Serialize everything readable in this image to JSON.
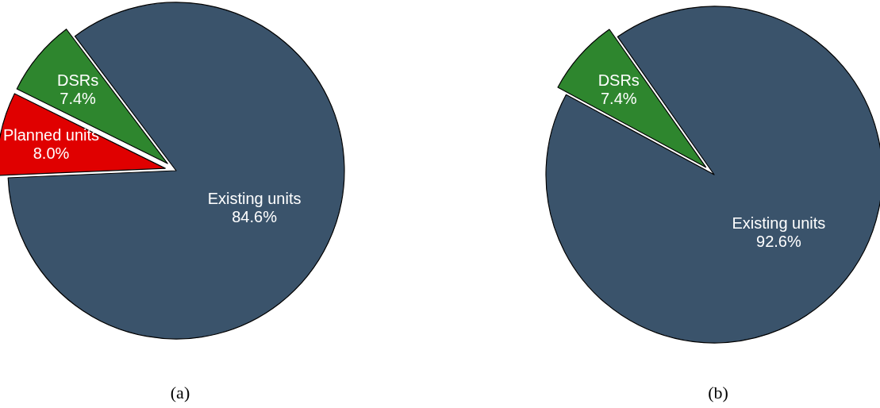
{
  "chart_data": [
    {
      "type": "pie",
      "title": "(a)",
      "categories": [
        "Existing units",
        "Planned units",
        "DSRs"
      ],
      "values": [
        84.6,
        8.0,
        7.4
      ],
      "colors": [
        "#3a536b",
        "#e00000",
        "#2e862e"
      ],
      "value_labels": [
        "84.6%",
        "8.0%",
        "7.4%"
      ],
      "legend": false
    },
    {
      "type": "pie",
      "title": "(b)",
      "categories": [
        "Existing units",
        "DSRs"
      ],
      "values": [
        92.6,
        7.4
      ],
      "colors": [
        "#3a536b",
        "#2e862e"
      ],
      "value_labels": [
        "92.6%",
        "7.4%"
      ],
      "legend": false
    }
  ]
}
